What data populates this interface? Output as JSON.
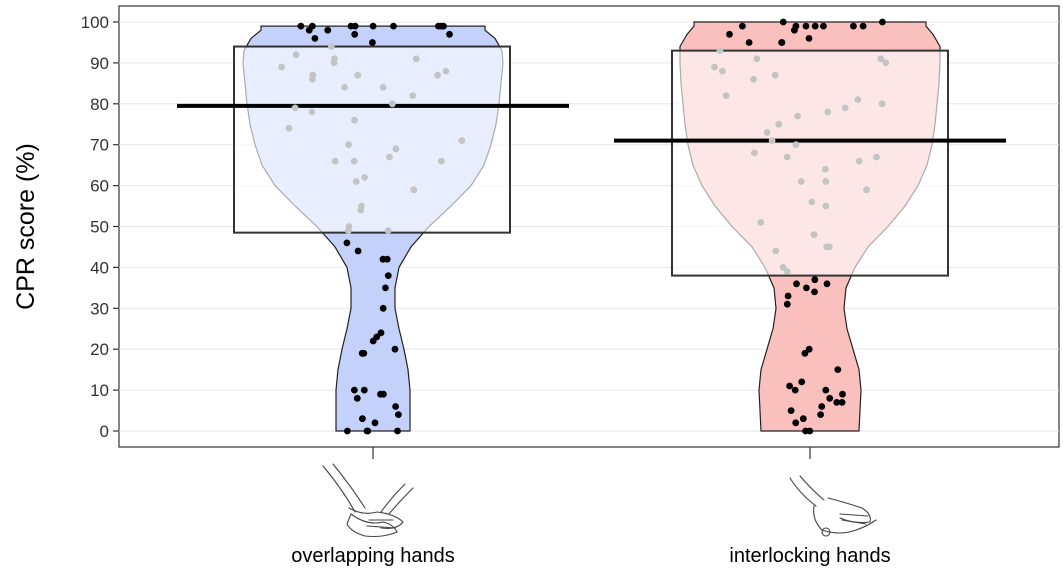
{
  "chart_data": {
    "type": "violin",
    "title": "",
    "xlabel": "",
    "ylabel": "CPR score (%)",
    "ylim": [
      0,
      100
    ],
    "yticks": [
      0,
      10,
      20,
      30,
      40,
      50,
      60,
      70,
      80,
      90,
      100
    ],
    "grid": true,
    "legend": "none",
    "categories": [
      "overlapping hands",
      "interlocking hands"
    ],
    "category_icons": [
      "overlapping-hands-icon",
      "interlocking-hands-icon"
    ],
    "series": [
      {
        "name": "overlapping hands",
        "color": "#c4d2fb",
        "mean": 79.5,
        "box": [
          48.5,
          94.0
        ],
        "points": [
          99,
          99,
          99,
          99,
          99,
          99,
          99,
          99,
          99,
          98,
          98,
          97,
          97,
          96,
          95,
          94,
          92,
          91,
          91,
          90,
          89,
          88,
          87,
          87,
          87,
          86,
          84,
          84,
          82,
          80,
          79,
          78,
          76,
          74,
          71,
          70,
          69,
          67,
          66,
          66,
          66,
          62,
          61,
          59,
          55,
          54,
          50,
          49,
          49,
          46,
          44,
          42,
          42,
          38,
          35,
          30,
          24,
          23,
          22,
          20,
          19,
          19,
          10,
          10,
          9,
          9,
          8,
          6,
          4,
          3,
          2,
          0,
          0,
          0,
          0
        ]
      },
      {
        "name": "interlocking hands",
        "color": "#f9c0bd",
        "mean": 71,
        "box": [
          38.0,
          93.0
        ],
        "points": [
          100,
          100,
          99,
          99,
          99,
          99,
          99,
          99,
          99,
          98,
          97,
          96,
          95,
          95,
          95,
          93,
          91,
          91,
          90,
          89,
          88,
          87,
          86,
          82,
          81,
          80,
          79,
          78,
          77,
          75,
          73,
          71,
          70,
          68,
          67,
          67,
          66,
          64,
          61,
          61,
          59,
          56,
          55,
          51,
          48,
          45,
          45,
          44,
          40,
          39,
          37,
          36,
          36,
          35,
          34,
          33,
          31,
          20,
          19,
          15,
          12,
          11,
          10,
          10,
          9,
          8,
          7,
          7,
          6,
          5,
          4,
          3,
          2,
          0,
          0
        ]
      }
    ],
    "highlight_colors": {
      "inside_box": "#c4c4c4",
      "outside_box": "#000000"
    }
  }
}
